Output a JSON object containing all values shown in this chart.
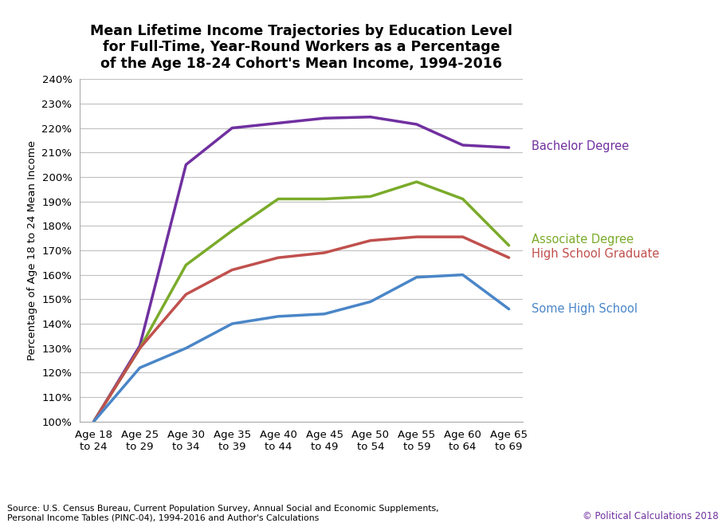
{
  "title": "Mean Lifetime Income Trajectories by Education Level\nfor Full-Time, Year-Round Workers as a Percentage\nof the Age 18-24 Cohort's Mean Income, 1994-2016",
  "ylabel": "Percentage of Age 18 to 24 Mean Income",
  "x_labels": [
    "Age 18\nto 24",
    "Age 25\nto 29",
    "Age 30\nto 34",
    "Age 35\nto 39",
    "Age 40\nto 44",
    "Age 45\nto 49",
    "Age 50\nto 54",
    "Age 55\nto 59",
    "Age 60\nto 64",
    "Age 65\nto 69"
  ],
  "x_values": [
    0,
    1,
    2,
    3,
    4,
    5,
    6,
    7,
    8,
    9
  ],
  "series": [
    {
      "label": "Bachelor Degree",
      "color": "#7030A0",
      "values": [
        1.0,
        1.31,
        2.05,
        2.2,
        2.22,
        2.24,
        2.245,
        2.215,
        2.13,
        2.12
      ]
    },
    {
      "label": "Associate Degree",
      "color": "#7AAB2A",
      "values": [
        1.0,
        1.3,
        1.64,
        1.78,
        1.91,
        1.91,
        1.92,
        1.98,
        1.91,
        1.72
      ]
    },
    {
      "label": "High School Graduate",
      "color": "#C0504D",
      "values": [
        1.0,
        1.3,
        1.52,
        1.62,
        1.67,
        1.69,
        1.74,
        1.755,
        1.755,
        1.67
      ]
    },
    {
      "label": "Some High School",
      "color": "#4A86C8",
      "values": [
        1.0,
        1.22,
        1.3,
        1.4,
        1.43,
        1.44,
        1.49,
        1.59,
        1.6,
        1.46
      ]
    }
  ],
  "annotations": [
    {
      "label": "Bachelor Degree",
      "color": "#7030A0",
      "y": 2.125
    },
    {
      "label": "Associate Degree",
      "color": "#7AAB2A",
      "y": 1.745
    },
    {
      "label": "High School Graduate",
      "color": "#C0504D",
      "y": 1.685
    },
    {
      "label": "Some High School",
      "color": "#4A86C8",
      "y": 1.46
    }
  ],
  "ylim": [
    1.0,
    2.4
  ],
  "yticks": [
    1.0,
    1.1,
    1.2,
    1.3,
    1.4,
    1.5,
    1.6,
    1.7,
    1.8,
    1.9,
    2.0,
    2.1,
    2.2,
    2.3,
    2.4
  ],
  "source_text": "Source: U.S. Census Bureau, Current Population Survey, Annual Social and Economic Supplements,\nPersonal Income Tables (PINC-04), 1994-2016 and Author's Calculations",
  "copyright_text": "© Political Calculations 2018",
  "background_color": "#FFFFFF",
  "grid_color": "#C0C0C0",
  "line_width": 2.5,
  "title_fontsize": 12.5,
  "label_fontsize": 9.5,
  "tick_fontsize": 9.5,
  "annot_fontsize": 10.5
}
